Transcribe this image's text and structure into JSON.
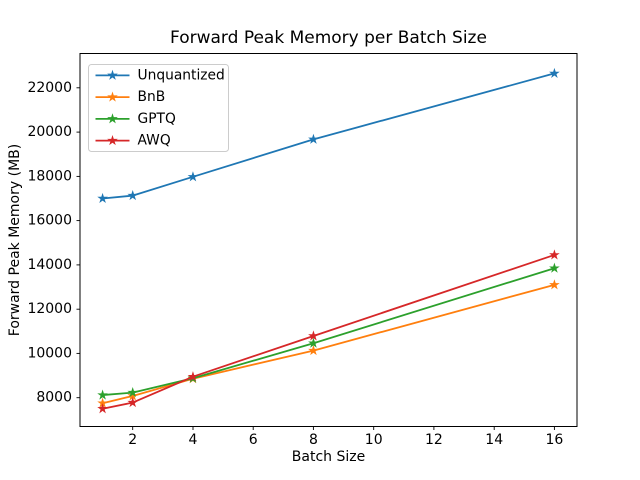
{
  "chart_data": {
    "type": "line",
    "title": "Forward Peak Memory per Batch Size",
    "xlabel": "Batch Size",
    "ylabel": "Forward Peak Memory (MB)",
    "x": [
      1,
      2,
      4,
      8,
      16
    ],
    "series": [
      {
        "name": "Unquantized",
        "color": "#1f77b4",
        "values": [
          17000,
          17130,
          17980,
          19670,
          22650
        ]
      },
      {
        "name": "BnB",
        "color": "#ff7f0e",
        "values": [
          7750,
          8080,
          8860,
          10130,
          13100
        ]
      },
      {
        "name": "GPTQ",
        "color": "#2ca02c",
        "values": [
          8120,
          8230,
          8880,
          10460,
          13850
        ]
      },
      {
        "name": "AWQ",
        "color": "#d62728",
        "values": [
          7500,
          7780,
          8950,
          10790,
          14450
        ]
      }
    ],
    "xticks": [
      2,
      4,
      6,
      8,
      10,
      12,
      14,
      16
    ],
    "yticks": [
      8000,
      10000,
      12000,
      14000,
      16000,
      18000,
      20000,
      22000
    ],
    "xlim": [
      0.25,
      16.75
    ],
    "ylim": [
      6700,
      23550
    ],
    "marker": "star",
    "grid": false,
    "legend_position": "upper left",
    "colors": {
      "background": "#ffffff",
      "spine": "#000000",
      "legend_border": "#cccccc"
    }
  }
}
